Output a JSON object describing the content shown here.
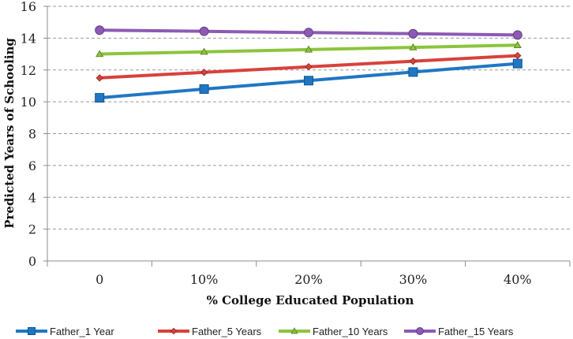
{
  "chart_data": {
    "type": "line",
    "title": "",
    "xlabel": "% College Educated Population",
    "ylabel": "Predicted Years of Schooling",
    "categories": [
      "0",
      "10%",
      "20%",
      "30%",
      "40%"
    ],
    "ylim": [
      0,
      16
    ],
    "yticks": [
      0,
      2,
      4,
      6,
      8,
      10,
      12,
      14,
      16
    ],
    "grid": true,
    "legend_position": "bottom",
    "series": [
      {
        "name": "Father_1 Year",
        "color": "#1f77c4",
        "marker": "square",
        "values": [
          10.25,
          10.8,
          11.33,
          11.87,
          12.4
        ]
      },
      {
        "name": "Father_5 Years",
        "color": "#d9413b",
        "marker": "diamond",
        "values": [
          11.5,
          11.85,
          12.2,
          12.55,
          12.9
        ]
      },
      {
        "name": "Father_10 Years",
        "color": "#8cc43c",
        "marker": "triangle",
        "values": [
          13.0,
          13.14,
          13.28,
          13.42,
          13.56
        ]
      },
      {
        "name": "Father_15 Years",
        "color": "#8e5ab5",
        "marker": "circle",
        "values": [
          14.5,
          14.43,
          14.35,
          14.28,
          14.2
        ]
      }
    ]
  }
}
